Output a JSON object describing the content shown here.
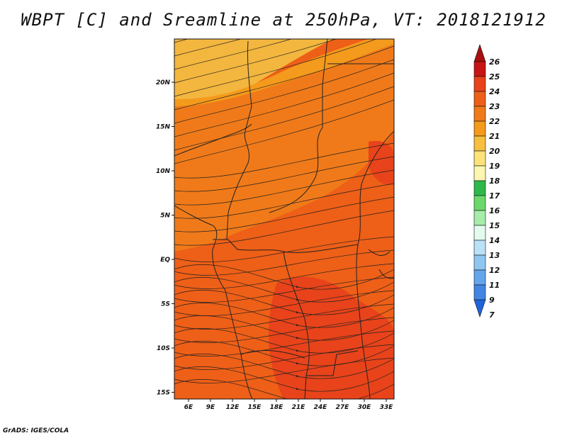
{
  "title": "WBPT [C] and Sreamline at 250hPa, VT: 2018121912",
  "credit": "GrADS: IGES/COLA",
  "map": {
    "lon_labels": [
      "6E",
      "9E",
      "12E",
      "15E",
      "18E",
      "21E",
      "24E",
      "27E",
      "30E",
      "33E"
    ],
    "lat_labels": [
      "20N",
      "15N",
      "10N",
      "5N",
      "EQ",
      "5S",
      "10S",
      "15S"
    ],
    "shading_colors": {
      "c20": "#f3b63e",
      "c21": "#f49a1c",
      "c22": "#f07a19",
      "c23": "#ee5f17",
      "c24": "#e8431a"
    }
  },
  "colorbar": {
    "levels": [
      "26",
      "25",
      "24",
      "23",
      "22",
      "21",
      "20",
      "19",
      "18",
      "17",
      "16",
      "15",
      "14",
      "13",
      "12",
      "11",
      "9",
      "7"
    ],
    "colors": [
      "#a80f0f",
      "#c81414",
      "#e8431a",
      "#ee5f17",
      "#f07a19",
      "#f49a1c",
      "#f6bf3f",
      "#fbe27a",
      "#fdf6b0",
      "#2fb84a",
      "#6ad86a",
      "#a6ecaa",
      "#e2fbee",
      "#bbe1f8",
      "#8fc6f1",
      "#63a6ec",
      "#4285e4",
      "#1f63dc"
    ]
  },
  "chart_data": {
    "type": "heatmap",
    "title": "WBPT [C] and Sreamline at 250hPa, VT: 2018121912",
    "x_ticks": [
      "6E",
      "9E",
      "12E",
      "15E",
      "18E",
      "21E",
      "24E",
      "27E",
      "30E",
      "33E"
    ],
    "y_ticks": [
      "20N",
      "15N",
      "10N",
      "5N",
      "EQ",
      "5S",
      "10S",
      "15S"
    ],
    "colorbar_levels": [
      26,
      25,
      24,
      23,
      22,
      21,
      20,
      19,
      18,
      17,
      16,
      15,
      14,
      13,
      12,
      11,
      9,
      7
    ],
    "dominant_values": {
      "north_band": 20,
      "central": 22,
      "south": 23
    }
  }
}
